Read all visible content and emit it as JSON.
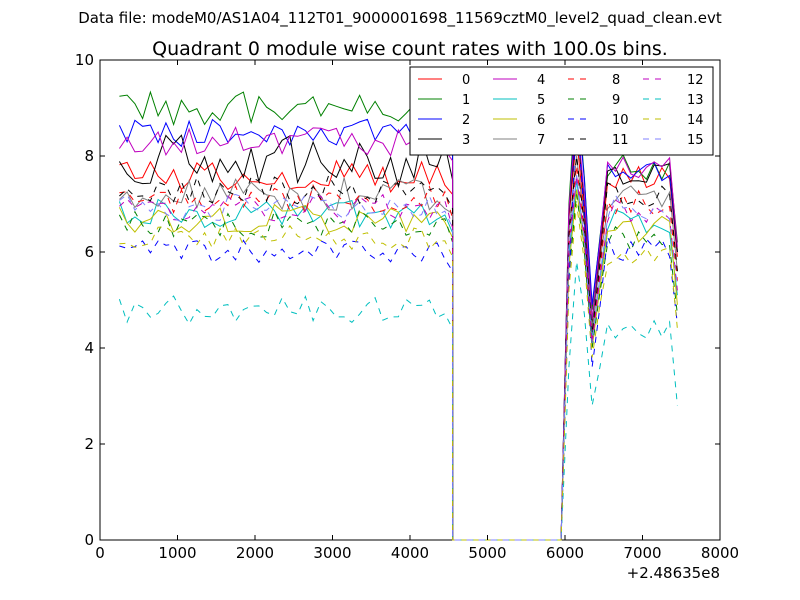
{
  "chart_data": {
    "type": "line",
    "suptitle": "Data file: modeM0/AS1A04_112T01_9000001698_11569cztM0_level2_quad_clean.evt",
    "title": "Quadrant 0 module wise count rates with 100.0s bins.",
    "xlabel": "",
    "ylabel": "",
    "x_offset_label": "+2.48635e8",
    "xlim": [
      0,
      8000
    ],
    "ylim": [
      0,
      10
    ],
    "xticks": [
      0,
      1000,
      2000,
      3000,
      4000,
      5000,
      6000,
      7000,
      8000
    ],
    "yticks": [
      0,
      2,
      4,
      6,
      8,
      10
    ],
    "xtick_labels": [
      "0",
      "1000",
      "2000",
      "3000",
      "4000",
      "5000",
      "6000",
      "7000",
      "8000"
    ],
    "ytick_labels": [
      "0",
      "2",
      "4",
      "6",
      "8",
      "10"
    ],
    "grid": false,
    "legend_position": "top-right",
    "legend_columns": 4,
    "bin_seconds": 100,
    "segment_a": {
      "x_start": 250,
      "step": 100,
      "count": 44
    },
    "gap": {
      "x_start": 4550,
      "x_end": 5950,
      "value": 0
    },
    "segment_b": {
      "x_start": 6050,
      "step": 100,
      "count": 15
    },
    "series": [
      {
        "name": "0",
        "color": "#ff0000",
        "dashed": false,
        "base_a": 7.6,
        "amp_a": 0.35,
        "peak": 8.4,
        "dip": 4.3,
        "base_b": 7.5
      },
      {
        "name": "1",
        "color": "#008000",
        "dashed": false,
        "base_a": 9.0,
        "amp_a": 0.35,
        "peak": 9.5,
        "dip": 4.8,
        "base_b": 7.8
      },
      {
        "name": "2",
        "color": "#0000ff",
        "dashed": false,
        "base_a": 8.5,
        "amp_a": 0.3,
        "peak": 9.3,
        "dip": 4.9,
        "base_b": 7.6
      },
      {
        "name": "3",
        "color": "#000000",
        "dashed": false,
        "base_a": 7.9,
        "amp_a": 0.55,
        "peak": 8.7,
        "dip": 4.5,
        "base_b": 7.6
      },
      {
        "name": "4",
        "color": "#bf00bf",
        "dashed": false,
        "base_a": 8.3,
        "amp_a": 0.3,
        "peak": 8.9,
        "dip": 4.6,
        "base_b": 7.7
      },
      {
        "name": "5",
        "color": "#00bfbf",
        "dashed": false,
        "base_a": 6.8,
        "amp_a": 0.3,
        "peak": 7.5,
        "dip": 4.2,
        "base_b": 6.7
      },
      {
        "name": "6",
        "color": "#bfbf00",
        "dashed": false,
        "base_a": 6.7,
        "amp_a": 0.3,
        "peak": 7.3,
        "dip": 4.0,
        "base_b": 6.5
      },
      {
        "name": "7",
        "color": "#808080",
        "dashed": false,
        "base_a": 7.2,
        "amp_a": 0.35,
        "peak": 8.0,
        "dip": 4.4,
        "base_b": 7.2
      },
      {
        "name": "8",
        "color": "#ff0000",
        "dashed": true,
        "base_a": 7.1,
        "amp_a": 0.3,
        "peak": 7.8,
        "dip": 4.2,
        "base_b": 7.0
      },
      {
        "name": "9",
        "color": "#008000",
        "dashed": true,
        "base_a": 6.6,
        "amp_a": 0.3,
        "peak": 7.2,
        "dip": 4.0,
        "base_b": 6.3
      },
      {
        "name": "10",
        "color": "#0000ff",
        "dashed": true,
        "base_a": 6.0,
        "amp_a": 0.25,
        "peak": 9.0,
        "dip": 3.6,
        "base_b": 6.1
      },
      {
        "name": "11",
        "color": "#000000",
        "dashed": true,
        "base_a": 7.3,
        "amp_a": 0.3,
        "peak": 8.0,
        "dip": 4.3,
        "base_b": 7.2
      },
      {
        "name": "12",
        "color": "#bf00bf",
        "dashed": true,
        "base_a": 6.9,
        "amp_a": 0.3,
        "peak": 7.6,
        "dip": 4.1,
        "base_b": 6.8
      },
      {
        "name": "13",
        "color": "#00bfbf",
        "dashed": true,
        "base_a": 4.8,
        "amp_a": 0.3,
        "peak": 5.8,
        "dip": 2.8,
        "base_b": 4.4
      },
      {
        "name": "14",
        "color": "#bfbf00",
        "dashed": true,
        "base_a": 6.3,
        "amp_a": 0.25,
        "peak": 7.0,
        "dip": 3.8,
        "base_b": 6.0
      },
      {
        "name": "15",
        "color": "#8080ff",
        "dashed": true,
        "base_a": 6.9,
        "amp_a": 0.3,
        "peak": 7.6,
        "dip": 4.1,
        "base_b": 6.9
      }
    ]
  }
}
